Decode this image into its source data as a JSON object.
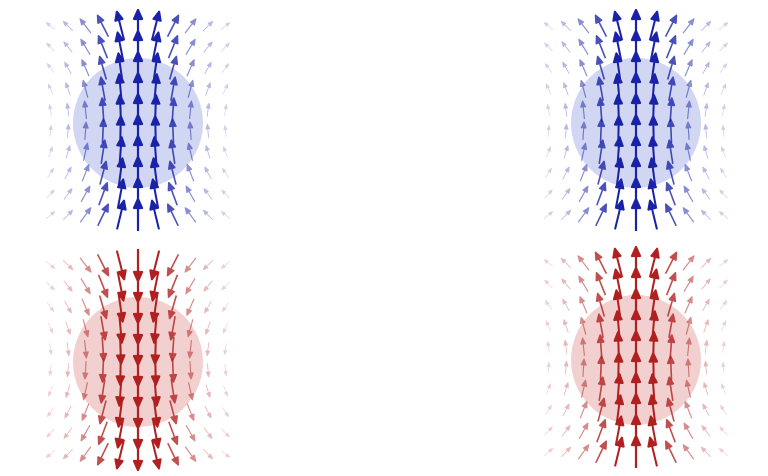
{
  "panels": [
    {
      "color": "#1a22a8",
      "fill": "#c9d0f0",
      "direction": "up"
    },
    {
      "color": "#1a22a8",
      "fill": "#c9d0f0",
      "direction": "up"
    },
    {
      "color": "#b02020",
      "fill": "#f0c8c8",
      "direction": "down"
    },
    {
      "color": "#b02020",
      "fill": "#f0c8c8",
      "direction": "up"
    }
  ]
}
